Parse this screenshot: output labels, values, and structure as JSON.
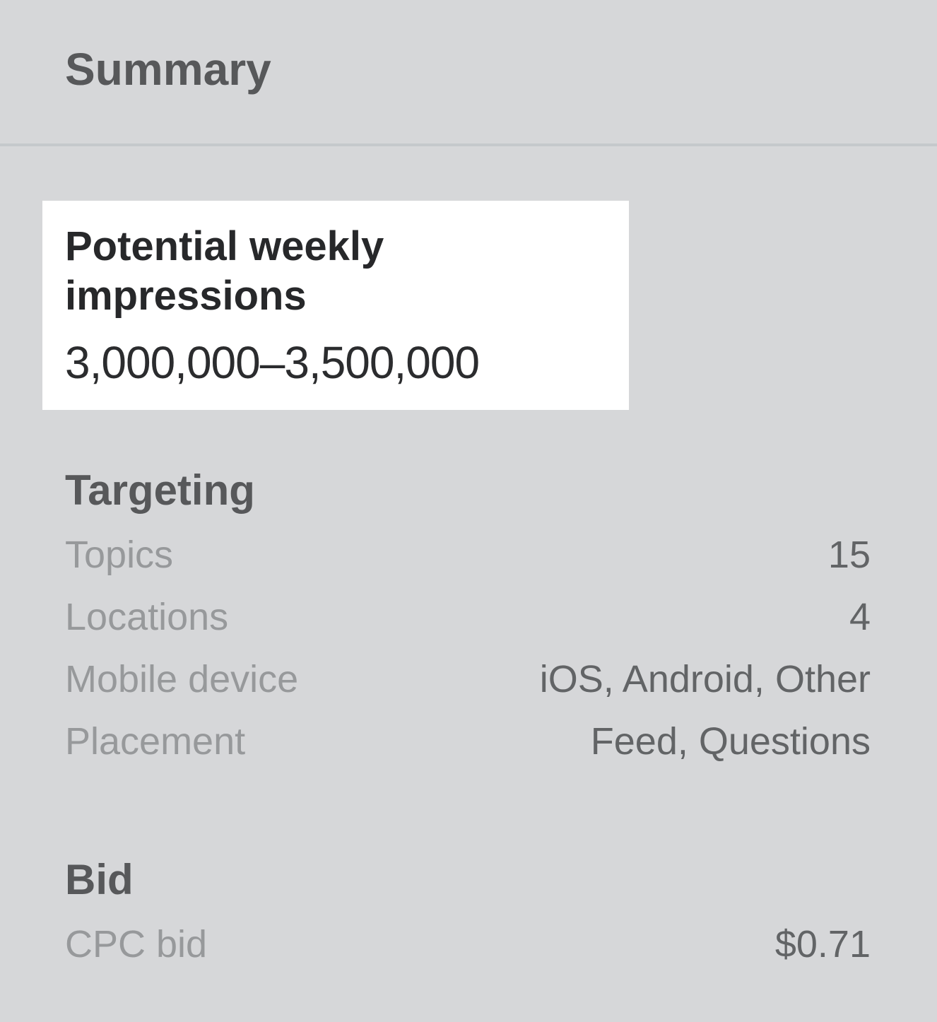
{
  "panel": {
    "title": "Summary",
    "highlight": {
      "label": "Potential weekly impressions",
      "value": "3,000,000–3,500,000"
    },
    "sections": [
      {
        "heading": "Targeting",
        "rows": [
          {
            "label": "Topics",
            "value": "15"
          },
          {
            "label": "Locations",
            "value": "4"
          },
          {
            "label": "Mobile device",
            "value": "iOS, Android, Other"
          },
          {
            "label": "Placement",
            "value": "Feed, Questions"
          }
        ]
      },
      {
        "heading": "Bid",
        "rows": [
          {
            "label": "CPC bid",
            "value": "$0.71"
          }
        ]
      }
    ]
  },
  "colors": {
    "panel_background": "#d6d7d9",
    "highlight_card_background": "#ffffff",
    "divider": "#c5c9cc",
    "heading_text": "#57585a",
    "label_text": "#97999b",
    "value_text": "#626466",
    "highlight_text": "#27282a"
  }
}
